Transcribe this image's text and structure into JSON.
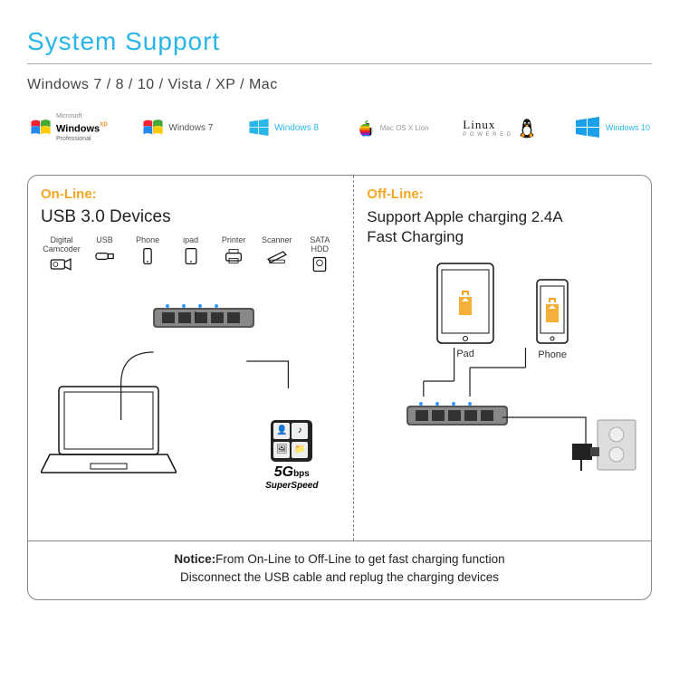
{
  "header": {
    "title": "System  Support",
    "title_color": "#29b5e8",
    "os_list": "Windows  7  /  8  /  10  /  Vista  /  XP  /  Mac"
  },
  "os_logos": [
    {
      "name": "Windows XP Professional",
      "label_top": "Microsoft",
      "label": "Windows",
      "suffix": "xp",
      "sub": "Professional",
      "icon": "winflag-classic"
    },
    {
      "name": "Windows 7",
      "label": "Windows",
      "suffix": "7",
      "icon": "winflag-classic"
    },
    {
      "name": "Windows 8",
      "label": "Windows",
      "suffix": "8",
      "icon": "win8",
      "color": "#29b5e8"
    },
    {
      "name": "Mac OS X Lion",
      "label": "Mac OS X Lion",
      "icon": "apple-rainbow"
    },
    {
      "name": "Linux Powered",
      "label": "Linux",
      "sub": "P O W E R E D",
      "icon": "tux"
    },
    {
      "name": "Windows 10",
      "label": "Windows 10",
      "icon": "win8",
      "color": "#1aa0e8"
    }
  ],
  "panel": {
    "online": {
      "mode": "On-Line:",
      "title": "USB 3.0 Devices",
      "devices": [
        {
          "label": "Digital\nCamcoder",
          "icon": "camcorder"
        },
        {
          "label": "USB",
          "icon": "usbstick"
        },
        {
          "label": "Phone",
          "icon": "phone"
        },
        {
          "label": "ipad",
          "icon": "tablet-sm"
        },
        {
          "label": "Printer",
          "icon": "printer"
        },
        {
          "label": "Scanner",
          "icon": "scanner"
        },
        {
          "label": "SATA\nHDD",
          "icon": "hdd"
        }
      ],
      "speed": {
        "big": "5G",
        "unit": "bps",
        "sub": "SuperSpeed"
      }
    },
    "offline": {
      "mode": "Off-Line:",
      "title": "Support Apple  charging 2.4A\nFast Charging",
      "pad_label": "Pad",
      "phone_label": "Phone"
    },
    "notice": {
      "label": "Notice:",
      "line1": "From On-Line to Off-Line to get fast charging function",
      "line2": "Disconnect the USB cable and replug the charging devices"
    },
    "colors": {
      "mode_label": "#f5a623",
      "border": "#888888",
      "line": "#222222"
    }
  }
}
